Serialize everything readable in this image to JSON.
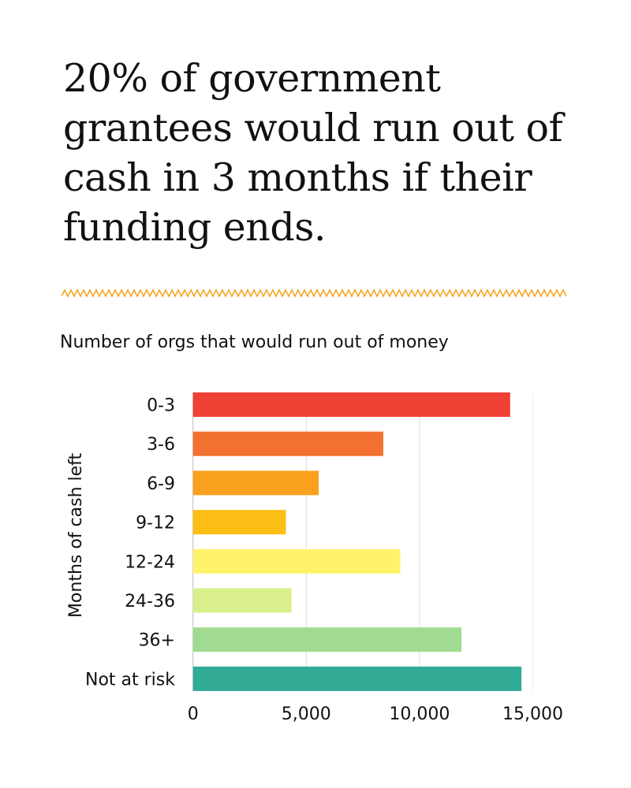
{
  "title": "20% of government grantees would run out of cash in 3 months if their funding ends.",
  "accent_color": "#f5a623",
  "chart_data": {
    "type": "bar",
    "orientation": "horizontal",
    "title": "Number of orgs that would run out of money",
    "ylabel": "Months of cash left",
    "xlabel": "",
    "categories": [
      "0-3",
      "3-6",
      "6-9",
      "9-12",
      "12-24",
      "24-36",
      "36+",
      "Not at risk"
    ],
    "values": [
      14000,
      8400,
      5550,
      4100,
      9150,
      4350,
      11850,
      14500
    ],
    "colors": [
      "#ef4136",
      "#f37130",
      "#f9a11f",
      "#fdbe15",
      "#fff36c",
      "#daf08c",
      "#a1da91",
      "#31aa96"
    ],
    "xlim": [
      0,
      15000
    ],
    "xticks": [
      0,
      5000,
      10000,
      15000
    ],
    "xtick_labels": [
      "0",
      "5,000",
      "10,000",
      "15,000"
    ],
    "grid": true,
    "legend": "none"
  }
}
